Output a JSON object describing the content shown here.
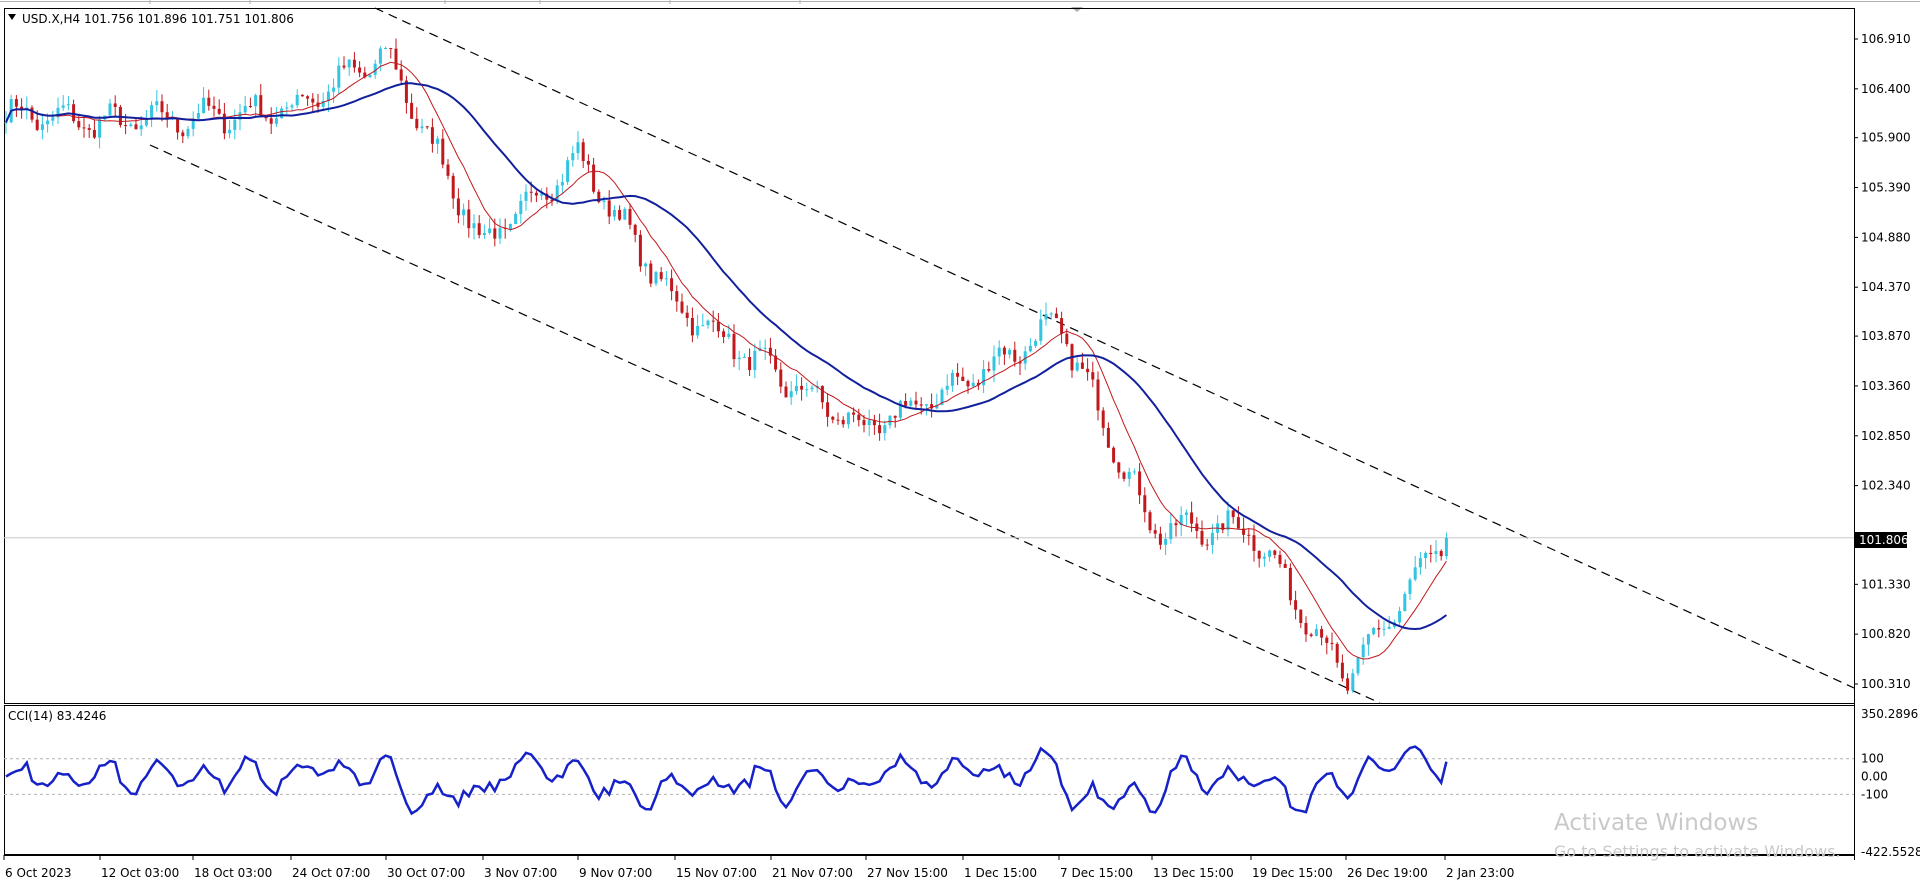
{
  "header": {
    "symbol": "USD.X,H4",
    "ohlc": "101.756 101.896 101.751 101.806",
    "dropdown_icon": "triangle-down-icon"
  },
  "indicator": {
    "label": "CCI(14) 83.4246",
    "scale": [
      "350.2896",
      "100",
      "0.00",
      "-100",
      "-422.5528"
    ]
  },
  "price_scale": [
    "106.910",
    "106.400",
    "105.900",
    "105.390",
    "104.880",
    "104.370",
    "103.870",
    "103.360",
    "102.850",
    "102.340",
    "101.330",
    "100.820",
    "100.310"
  ],
  "current_price": "101.806",
  "time_axis": [
    "6 Oct 2023",
    "12 Oct 03:00",
    "18 Oct 03:00",
    "24 Oct 07:00",
    "30 Oct 07:00",
    "3 Nov 07:00",
    "9 Nov 07:00",
    "15 Nov 07:00",
    "21 Nov 07:00",
    "27 Nov 15:00",
    "1 Dec 15:00",
    "7 Dec 15:00",
    "13 Dec 15:00",
    "19 Dec 15:00",
    "26 Dec 19:00",
    "2 Jan 23:00"
  ],
  "watermark": {
    "title": "Activate Windows",
    "subtitle": "Go to Settings to activate Windows."
  },
  "colors": {
    "bull": "#33c4e0",
    "bear": "#c0191d",
    "ma_slow": "#12209c",
    "ma_fast": "#c0191d",
    "cci": "#1622c8",
    "channel": "#000000",
    "price_line": "#c8c8c8",
    "current_tag_bg": "#000000"
  },
  "chart_data": {
    "type": "candlestick",
    "instrument": "USD.X",
    "timeframe": "H4",
    "last_price": 101.806,
    "y_ticks": [
      106.91,
      106.4,
      105.9,
      105.39,
      104.88,
      104.37,
      103.87,
      103.36,
      102.85,
      102.34,
      101.33,
      100.82,
      100.31
    ],
    "anchors": [
      {
        "time": "6 Oct 2023",
        "price": 106.15
      },
      {
        "time": "12 Oct 03:00",
        "price": 106.05
      },
      {
        "time": "18 Oct 03:00",
        "price": 106.1
      },
      {
        "time": "24 Oct 07:00",
        "price": 106.2
      },
      {
        "time": "30 Oct 07:00",
        "price": 106.75
      },
      {
        "time": "3 Nov 07:00",
        "price": 104.8
      },
      {
        "time": "9 Nov 07:00",
        "price": 105.7
      },
      {
        "time": "15 Nov 07:00",
        "price": 104.2
      },
      {
        "time": "21 Nov 07:00",
        "price": 103.5
      },
      {
        "time": "27 Nov 15:00",
        "price": 102.9
      },
      {
        "time": "1 Dec 15:00",
        "price": 103.4
      },
      {
        "time": "7 Dec 15:00",
        "price": 104.0
      },
      {
        "time": "13 Dec 15:00",
        "price": 101.9
      },
      {
        "time": "19 Dec 15:00",
        "price": 101.9
      },
      {
        "time": "26 Dec 19:00",
        "price": 100.35
      },
      {
        "time": "2 Jan 23:00",
        "price": 101.806
      }
    ],
    "cci": {
      "name": "CCI(14)",
      "last_value": 83.4246,
      "ylim": [
        -422.5528,
        350.2896
      ],
      "levels": [
        100,
        -100
      ]
    }
  }
}
